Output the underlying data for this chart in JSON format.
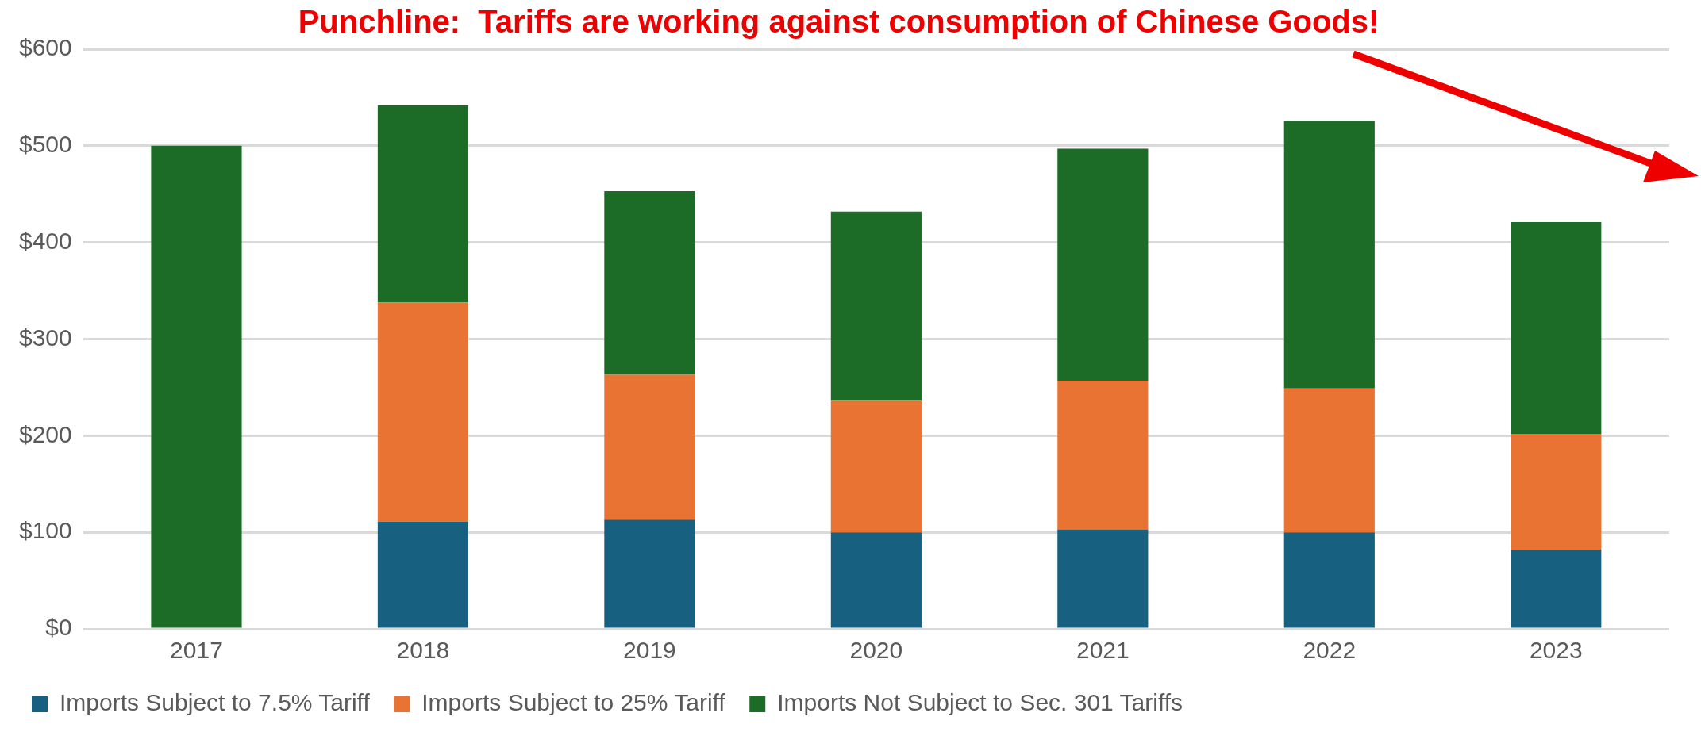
{
  "chart_data": {
    "type": "bar",
    "title": "Punchline:  Tariffs are working against consumption of Chinese Goods!",
    "categories": [
      "2017",
      "2018",
      "2019",
      "2020",
      "2021",
      "2022",
      "2023"
    ],
    "series": [
      {
        "name": "Imports Subject to 7.5% Tariff",
        "color": "#17607f",
        "values": [
          null,
          111,
          113,
          100,
          103,
          100,
          82
        ]
      },
      {
        "name": "Imports Subject to 25% Tariff",
        "color": "#e97333",
        "values": [
          null,
          227,
          150,
          136,
          154,
          149,
          120
        ]
      },
      {
        "name": "Imports Not Subject to Sec. 301 Tariffs",
        "color": "#1c6b26",
        "values": [
          500,
          204,
          190,
          196,
          240,
          277,
          219
        ]
      }
    ],
    "stacked": true,
    "ylim": [
      0,
      600
    ],
    "yticks": [
      {
        "value": 0,
        "label": "$0"
      },
      {
        "value": 100,
        "label": "$100"
      },
      {
        "value": 200,
        "label": "$200"
      },
      {
        "value": 300,
        "label": "$300"
      },
      {
        "value": 400,
        "label": "$400"
      },
      {
        "value": 500,
        "label": "$500"
      },
      {
        "value": 600,
        "label": "$600"
      }
    ],
    "grid": "y",
    "legend": "bottom"
  }
}
